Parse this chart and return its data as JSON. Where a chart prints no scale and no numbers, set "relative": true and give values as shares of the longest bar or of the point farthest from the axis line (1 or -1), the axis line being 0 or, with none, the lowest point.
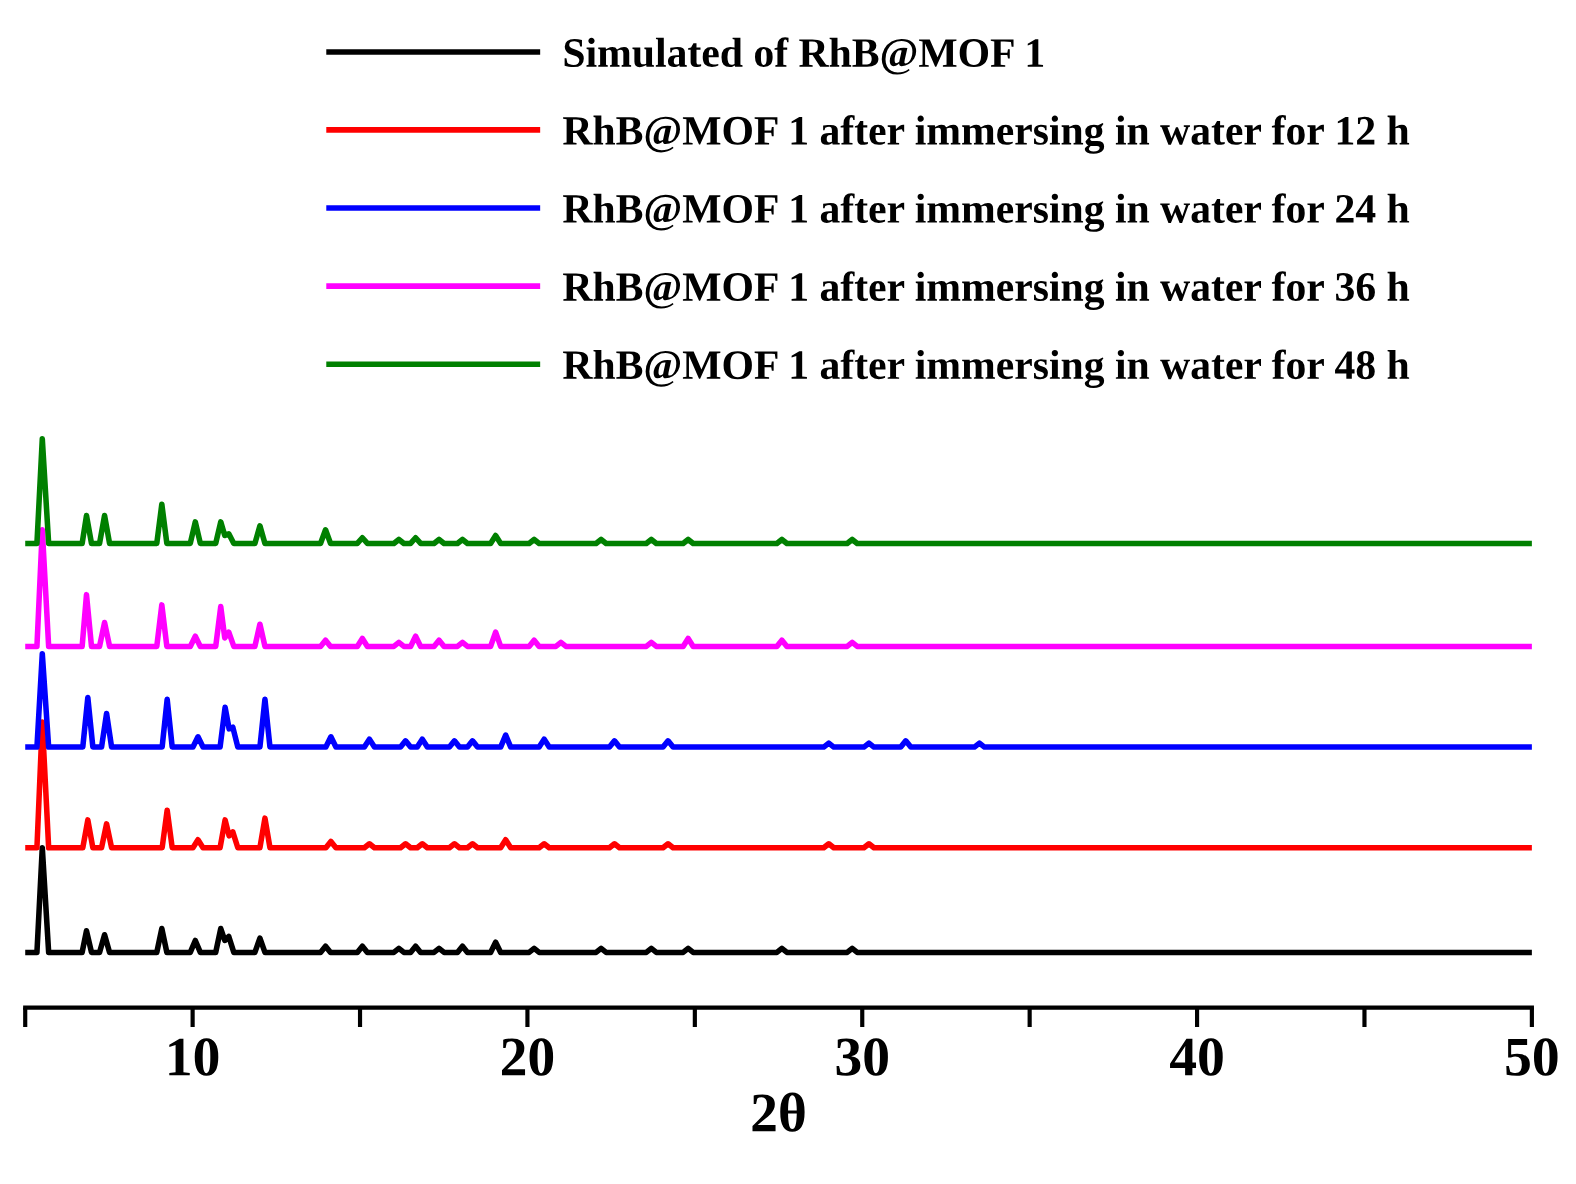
{
  "chart_data": {
    "type": "line",
    "relative": true,
    "xlabel": "2θ",
    "xlim": [
      5,
      50
    ],
    "xticks": [
      {
        "value": 5,
        "label": null
      },
      10,
      {
        "value": 15,
        "label": null
      },
      20,
      {
        "value": 25,
        "label": null
      },
      30,
      {
        "value": 35,
        "label": null
      },
      40,
      {
        "value": 45,
        "label": null
      },
      50
    ],
    "tick_labels": "x",
    "grid": false,
    "legend": "top",
    "line_style": "solid",
    "marker": "none",
    "series": [
      {
        "name": "Simulated of RhB@MOF 1",
        "color": "#000000",
        "x": [
          5.0,
          5.35,
          5.51,
          5.7,
          6.7,
          6.83,
          6.98,
          7.22,
          7.37,
          7.52,
          8.93,
          9.08,
          9.23,
          9.93,
          10.08,
          10.23,
          10.69,
          10.84,
          10.96,
          11.08,
          11.23,
          11.86,
          12.01,
          12.16,
          13.82,
          13.97,
          14.12,
          14.92,
          15.07,
          15.22,
          16.01,
          16.16,
          16.31,
          16.51,
          16.66,
          16.81,
          17.21,
          17.36,
          17.51,
          17.91,
          18.06,
          18.21,
          18.9,
          19.05,
          19.2,
          20.05,
          20.2,
          20.35,
          22.05,
          22.2,
          22.35,
          23.55,
          23.7,
          23.85,
          24.65,
          24.8,
          24.95,
          27.45,
          27.6,
          27.75,
          29.55,
          29.7,
          29.85,
          50
        ],
        "values": [
          0.097,
          0.097,
          0.281,
          0.097,
          0.097,
          0.135,
          0.097,
          0.097,
          0.128,
          0.097,
          0.097,
          0.139,
          0.097,
          0.097,
          0.118,
          0.097,
          0.097,
          0.139,
          0.118,
          0.125,
          0.097,
          0.097,
          0.122,
          0.097,
          0.097,
          0.108,
          0.097,
          0.097,
          0.108,
          0.097,
          0.097,
          0.104,
          0.097,
          0.097,
          0.108,
          0.097,
          0.097,
          0.104,
          0.097,
          0.097,
          0.108,
          0.097,
          0.097,
          0.115,
          0.097,
          0.097,
          0.104,
          0.097,
          0.097,
          0.104,
          0.097,
          0.097,
          0.104,
          0.097,
          0.097,
          0.104,
          0.097,
          0.097,
          0.104,
          0.097,
          0.097,
          0.104,
          0.097,
          0.097
        ]
      },
      {
        "name": "RhB@MOF 1 after immersing in water for 12 h",
        "color": "#ff0000",
        "x": [
          5.0,
          5.35,
          5.51,
          5.7,
          6.72,
          6.87,
          7.02,
          7.28,
          7.43,
          7.58,
          9.09,
          9.24,
          9.39,
          10.01,
          10.16,
          10.31,
          10.82,
          10.97,
          11.09,
          11.2,
          11.35,
          12.01,
          12.16,
          12.31,
          13.98,
          14.13,
          14.28,
          15.13,
          15.28,
          15.43,
          16.21,
          16.36,
          16.51,
          16.71,
          16.86,
          17.01,
          17.67,
          17.82,
          17.97,
          18.21,
          18.36,
          18.51,
          19.2,
          19.35,
          19.5,
          20.35,
          20.5,
          20.65,
          22.45,
          22.6,
          22.75,
          24.05,
          24.2,
          24.35,
          28.85,
          29.0,
          29.15,
          30.05,
          30.2,
          30.35,
          50
        ],
        "values": [
          0.281,
          0.281,
          0.502,
          0.281,
          0.281,
          0.33,
          0.281,
          0.281,
          0.323,
          0.281,
          0.281,
          0.347,
          0.281,
          0.281,
          0.295,
          0.281,
          0.281,
          0.33,
          0.302,
          0.309,
          0.281,
          0.281,
          0.333,
          0.281,
          0.281,
          0.292,
          0.281,
          0.281,
          0.288,
          0.281,
          0.281,
          0.288,
          0.281,
          0.281,
          0.288,
          0.281,
          0.281,
          0.288,
          0.281,
          0.281,
          0.288,
          0.281,
          0.281,
          0.295,
          0.281,
          0.281,
          0.288,
          0.281,
          0.281,
          0.288,
          0.281,
          0.281,
          0.288,
          0.281,
          0.281,
          0.288,
          0.281,
          0.281,
          0.288,
          0.281,
          0.281
        ]
      },
      {
        "name": "RhB@MOF 1 after immersing in water for 24 h",
        "color": "#0000ff",
        "x": [
          5.0,
          5.35,
          5.51,
          5.7,
          6.72,
          6.87,
          7.02,
          7.28,
          7.43,
          7.58,
          9.09,
          9.24,
          9.39,
          10.01,
          10.16,
          10.31,
          10.82,
          10.97,
          11.09,
          11.2,
          11.35,
          12.01,
          12.16,
          12.31,
          13.98,
          14.13,
          14.28,
          15.13,
          15.28,
          15.43,
          16.21,
          16.36,
          16.51,
          16.71,
          16.86,
          17.01,
          17.67,
          17.82,
          17.97,
          18.21,
          18.36,
          18.51,
          19.2,
          19.35,
          19.5,
          20.35,
          20.5,
          20.65,
          22.45,
          22.6,
          22.75,
          24.05,
          24.2,
          24.35,
          28.85,
          29.0,
          29.15,
          30.05,
          30.2,
          30.35,
          31.15,
          31.3,
          31.45,
          33.35,
          33.5,
          33.65,
          50
        ],
        "values": [
          0.458,
          0.458,
          0.622,
          0.458,
          0.458,
          0.545,
          0.458,
          0.458,
          0.517,
          0.458,
          0.458,
          0.542,
          0.458,
          0.458,
          0.476,
          0.458,
          0.458,
          0.528,
          0.49,
          0.493,
          0.458,
          0.458,
          0.542,
          0.458,
          0.458,
          0.476,
          0.458,
          0.458,
          0.472,
          0.458,
          0.458,
          0.469,
          0.458,
          0.458,
          0.472,
          0.458,
          0.458,
          0.469,
          0.458,
          0.458,
          0.469,
          0.458,
          0.458,
          0.479,
          0.458,
          0.458,
          0.472,
          0.458,
          0.458,
          0.469,
          0.458,
          0.458,
          0.469,
          0.458,
          0.458,
          0.465,
          0.458,
          0.458,
          0.465,
          0.458,
          0.458,
          0.469,
          0.458,
          0.458,
          0.465,
          0.458,
          0.458
        ]
      },
      {
        "name": "RhB@MOF 1 after immersing in water for 36 h",
        "color": "#ff00ff",
        "x": [
          5.0,
          5.35,
          5.51,
          5.7,
          6.7,
          6.83,
          6.98,
          7.22,
          7.37,
          7.52,
          8.93,
          9.08,
          9.23,
          9.93,
          10.08,
          10.23,
          10.69,
          10.84,
          10.96,
          11.08,
          11.23,
          11.86,
          12.01,
          12.16,
          13.82,
          13.97,
          14.12,
          14.92,
          15.07,
          15.22,
          16.01,
          16.16,
          16.31,
          16.51,
          16.66,
          16.81,
          17.21,
          17.36,
          17.51,
          17.91,
          18.06,
          18.21,
          18.9,
          19.05,
          19.2,
          20.05,
          20.2,
          20.35,
          20.85,
          21.0,
          21.15,
          23.55,
          23.7,
          23.85,
          24.65,
          24.8,
          24.95,
          27.45,
          27.6,
          27.75,
          29.55,
          29.7,
          29.85,
          50
        ],
        "values": [
          0.635,
          0.635,
          0.84,
          0.635,
          0.635,
          0.726,
          0.635,
          0.635,
          0.677,
          0.635,
          0.635,
          0.708,
          0.635,
          0.635,
          0.653,
          0.635,
          0.635,
          0.705,
          0.65,
          0.66,
          0.635,
          0.635,
          0.674,
          0.635,
          0.635,
          0.646,
          0.635,
          0.635,
          0.649,
          0.635,
          0.635,
          0.642,
          0.635,
          0.635,
          0.653,
          0.635,
          0.635,
          0.646,
          0.635,
          0.635,
          0.642,
          0.635,
          0.635,
          0.66,
          0.635,
          0.635,
          0.646,
          0.635,
          0.635,
          0.642,
          0.635,
          0.635,
          0.642,
          0.635,
          0.635,
          0.649,
          0.635,
          0.635,
          0.646,
          0.635,
          0.635,
          0.642,
          0.635,
          0.635
        ]
      },
      {
        "name": "RhB@MOF 1 after immersing in water for 48 h",
        "color": "#008000",
        "x": [
          5.0,
          5.35,
          5.51,
          5.7,
          6.7,
          6.83,
          6.98,
          7.22,
          7.37,
          7.52,
          8.93,
          9.08,
          9.23,
          9.93,
          10.08,
          10.23,
          10.69,
          10.84,
          10.96,
          11.08,
          11.23,
          11.86,
          12.01,
          12.16,
          13.82,
          13.97,
          14.12,
          14.92,
          15.07,
          15.22,
          16.01,
          16.16,
          16.31,
          16.51,
          16.66,
          16.81,
          17.21,
          17.36,
          17.51,
          17.91,
          18.06,
          18.21,
          18.9,
          19.05,
          19.2,
          20.05,
          20.2,
          20.35,
          22.05,
          22.2,
          22.35,
          23.55,
          23.7,
          23.85,
          24.65,
          24.8,
          24.95,
          27.45,
          27.6,
          27.75,
          29.55,
          29.7,
          29.85,
          50
        ],
        "values": [
          0.816,
          0.816,
          1.0,
          0.816,
          0.816,
          0.865,
          0.816,
          0.816,
          0.865,
          0.816,
          0.816,
          0.885,
          0.816,
          0.816,
          0.854,
          0.816,
          0.816,
          0.854,
          0.83,
          0.833,
          0.816,
          0.816,
          0.847,
          0.816,
          0.816,
          0.84,
          0.816,
          0.816,
          0.826,
          0.816,
          0.816,
          0.823,
          0.816,
          0.816,
          0.826,
          0.816,
          0.816,
          0.823,
          0.816,
          0.816,
          0.823,
          0.816,
          0.816,
          0.83,
          0.816,
          0.816,
          0.823,
          0.816,
          0.816,
          0.823,
          0.816,
          0.816,
          0.823,
          0.816,
          0.816,
          0.823,
          0.816,
          0.816,
          0.823,
          0.816,
          0.816,
          0.823,
          0.816,
          0.816
        ]
      }
    ]
  }
}
